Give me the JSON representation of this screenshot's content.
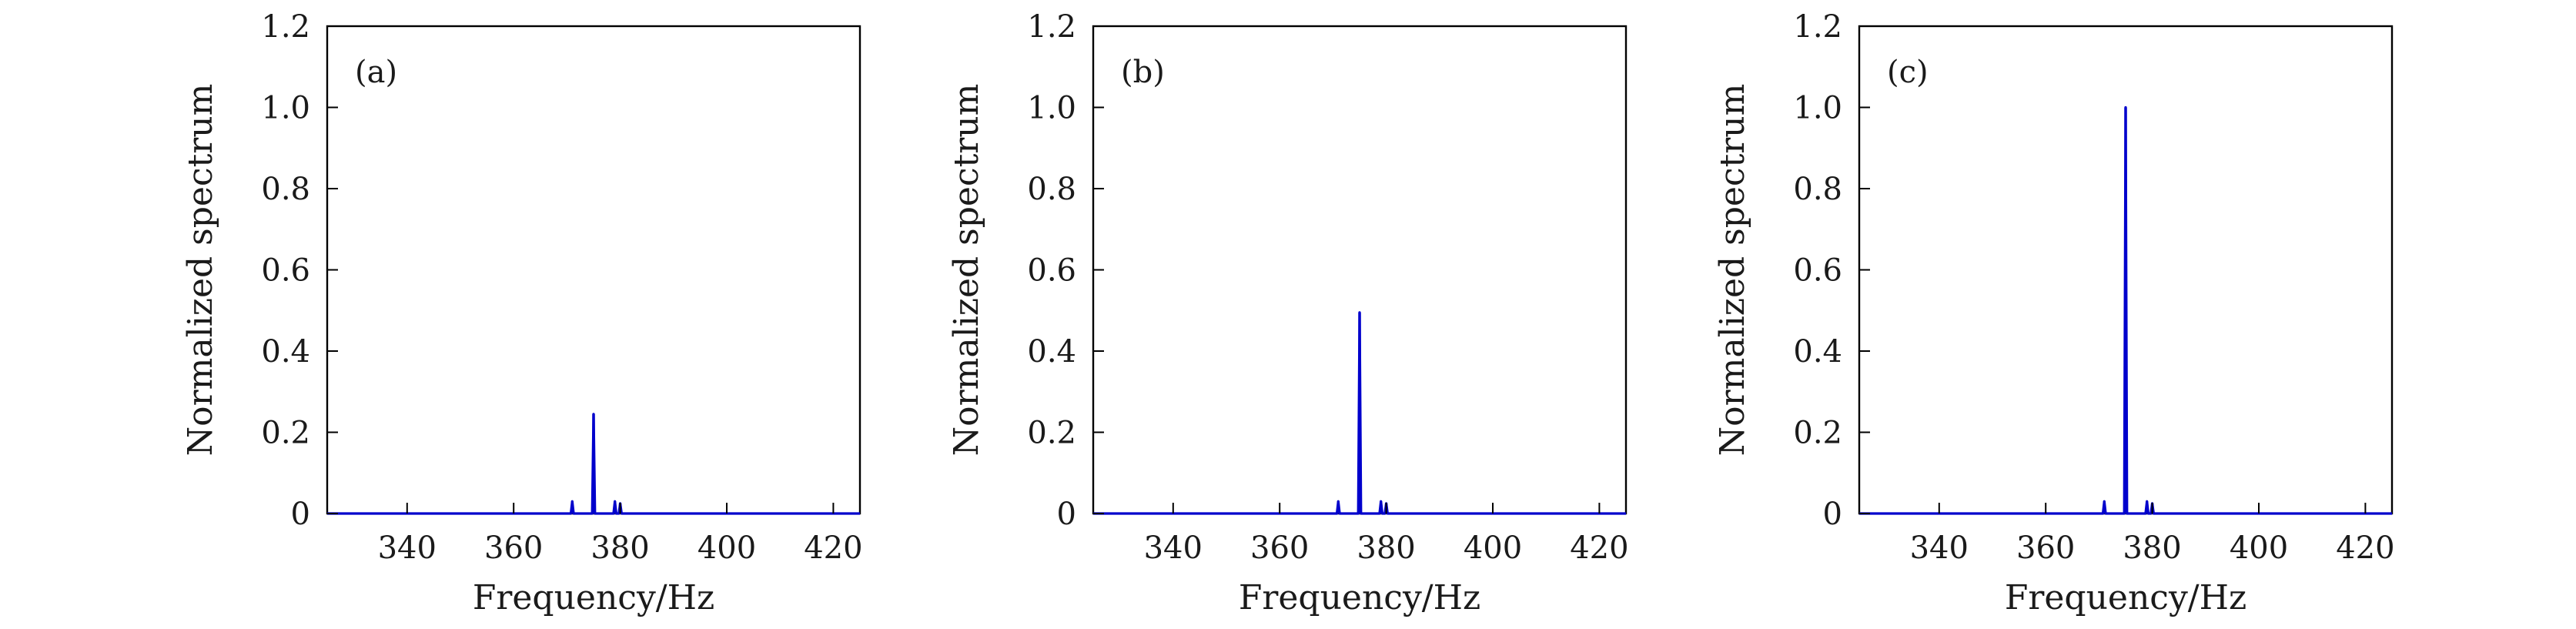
{
  "chart_data": [
    {
      "type": "line",
      "panel_label": "(a)",
      "xlabel": "Frequency/Hz",
      "ylabel": "Normalized spectrum",
      "xlim": [
        325,
        425
      ],
      "ylim": [
        0,
        1.2
      ],
      "xticks": [
        340,
        360,
        380,
        400,
        420
      ],
      "xtick_labels": [
        "340",
        "360",
        "380",
        "400",
        "420"
      ],
      "yticks": [
        0,
        0.2,
        0.4,
        0.6,
        0.8,
        1.0,
        1.2
      ],
      "ytick_labels": [
        "0",
        "0.2",
        "0.4",
        "0.6",
        "0.8",
        "1.0",
        "1.2"
      ],
      "grid": false,
      "series_color": "#0000cc",
      "peaks": [
        {
          "x": 371.0,
          "y": 0.03
        },
        {
          "x": 375.0,
          "y": 0.245
        },
        {
          "x": 379.0,
          "y": 0.03
        },
        {
          "x": 380.0,
          "y": 0.025
        }
      ]
    },
    {
      "type": "line",
      "panel_label": "(b)",
      "xlabel": "Frequency/Hz",
      "ylabel": "Normalized spectrum",
      "xlim": [
        325,
        425
      ],
      "ylim": [
        0,
        1.2
      ],
      "xticks": [
        340,
        360,
        380,
        400,
        420
      ],
      "xtick_labels": [
        "340",
        "360",
        "380",
        "400",
        "420"
      ],
      "yticks": [
        0,
        0.2,
        0.4,
        0.6,
        0.8,
        1.0,
        1.2
      ],
      "ytick_labels": [
        "0",
        "0.2",
        "0.4",
        "0.6",
        "0.8",
        "1.0",
        "1.2"
      ],
      "grid": false,
      "series_color": "#0000cc",
      "peaks": [
        {
          "x": 371.0,
          "y": 0.03
        },
        {
          "x": 375.0,
          "y": 0.495
        },
        {
          "x": 379.0,
          "y": 0.03
        },
        {
          "x": 380.0,
          "y": 0.025
        }
      ]
    },
    {
      "type": "line",
      "panel_label": "(c)",
      "xlabel": "Frequency/Hz",
      "ylabel": "Normalized spectrum",
      "xlim": [
        325,
        425
      ],
      "ylim": [
        0,
        1.2
      ],
      "xticks": [
        340,
        360,
        380,
        400,
        420
      ],
      "xtick_labels": [
        "340",
        "360",
        "380",
        "400",
        "420"
      ],
      "yticks": [
        0,
        0.2,
        0.4,
        0.6,
        0.8,
        1.0,
        1.2
      ],
      "ytick_labels": [
        "0",
        "0.2",
        "0.4",
        "0.6",
        "0.8",
        "1.0",
        "1.2"
      ],
      "grid": false,
      "series_color": "#0000cc",
      "peaks": [
        {
          "x": 371.0,
          "y": 0.03
        },
        {
          "x": 375.0,
          "y": 1.0
        },
        {
          "x": 379.0,
          "y": 0.03
        },
        {
          "x": 380.0,
          "y": 0.025
        }
      ]
    }
  ]
}
